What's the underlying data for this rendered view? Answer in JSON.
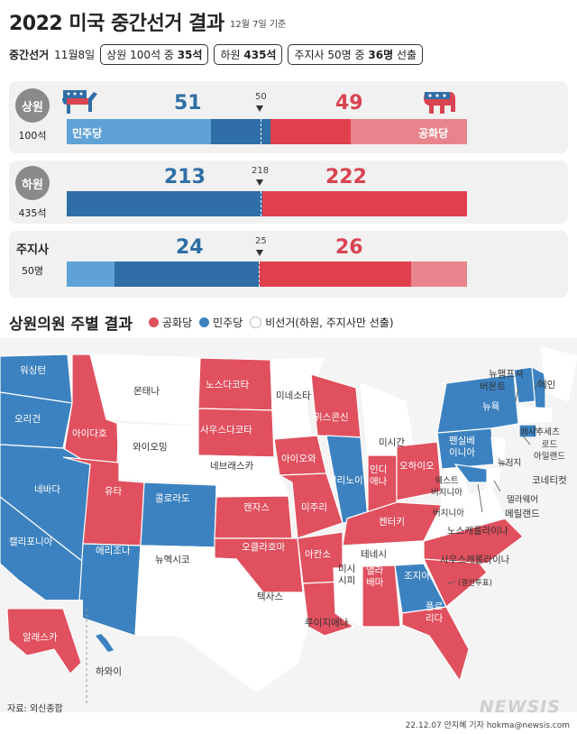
{
  "header": {
    "title": "2022 미국 중간선거 결과",
    "date": "12월 7일 기준",
    "subline": {
      "tag": "중간선거",
      "date": "11월8일",
      "senate_pre": "상원 100석 중",
      "senate_val": "35석",
      "house_pre": "하원",
      "house_val": "435석",
      "gov_pre": "주지사  50명 중",
      "gov_val": "36명",
      "gov_post": "선출"
    }
  },
  "races": {
    "senate": {
      "name": "상원",
      "seats": "100석",
      "dem": "51",
      "rep": "49",
      "majority": "50",
      "dem_label": "민주당",
      "rep_label": "공화당",
      "dem_share": 0.51,
      "dem_holdover_share": 0.36
    },
    "house": {
      "name": "하원",
      "seats": "435석",
      "dem": "213",
      "rep": "222",
      "majority": "218",
      "dem_share": 0.4897
    },
    "gov": {
      "name": "주지사",
      "seats": "50명",
      "dem": "24",
      "rep": "26",
      "majority": "25",
      "dem_share": 0.48,
      "dem_holdover_share": 0.12,
      "rep_holdover_share": 0.14
    }
  },
  "map": {
    "title": "상원의원 주별 결과",
    "legend": {
      "rep": "공화당",
      "dem": "민주당",
      "none": "비선거(하원, 주지사만 선출)"
    },
    "colors": {
      "rep": "#e0505e",
      "dem": "#3d82c0",
      "none": "#ffffff",
      "dem_light": "#5fa3d6",
      "rep_light": "#e8848c"
    },
    "states": {
      "washington": "워싱턴",
      "oregon": "오리건",
      "idaho": "아이다호",
      "montana": "몬태나",
      "wyoming": "와이오밍",
      "nevada": "네바다",
      "utah": "유타",
      "colorado": "콜로라도",
      "california": "캘리포니아",
      "arizona": "애리조나",
      "new_mexico": "뉴멕시코",
      "north_dakota": "노스다코타",
      "south_dakota": "사우스다코타",
      "nebraska": "네브래스카",
      "kansas": "캔자스",
      "oklahoma": "오클라호마",
      "texas": "텍사스",
      "minnesota": "미네소타",
      "iowa": "아이오와",
      "missouri": "미주리",
      "arkansas": "아칸소",
      "louisiana": "루이지애나",
      "wisconsin": "위스콘신",
      "illinois": "일리노이",
      "michigan": "미시간",
      "indiana": "인디\n애나",
      "ohio": "오하이오",
      "kentucky": "켄터키",
      "tennessee": "테네시",
      "mississippi": "미시\n시피",
      "alabama": "앨라\n배마",
      "georgia": "조지아",
      "georgia_note": "(결선투표)",
      "florida": "플로\n리다",
      "south_carolina": "사우스캐롤라이나",
      "north_carolina": "노스캐롤라이나",
      "west_virginia": "웨스트\n버지니아",
      "virginia": "버지니아",
      "pennsylvania": "펜실베\n이니아",
      "new_york": "뉴욕",
      "vermont": "버몬트",
      "new_hampshire": "뉴햄프셔",
      "maine": "메인",
      "massachusetts": "매사추세츠",
      "rhode_island": "로드\n아일랜드",
      "connecticut": "코네티컷",
      "new_jersey": "뉴저지",
      "delaware": "델라웨어",
      "maryland": "메릴랜드",
      "alaska": "알래스카",
      "hawaii": "하와이"
    }
  },
  "footer": {
    "source": "자료: 외신종합",
    "credit": "22.12.07 안지혜 기자 hokma@newsis.com",
    "logo": "NEWSIS"
  }
}
